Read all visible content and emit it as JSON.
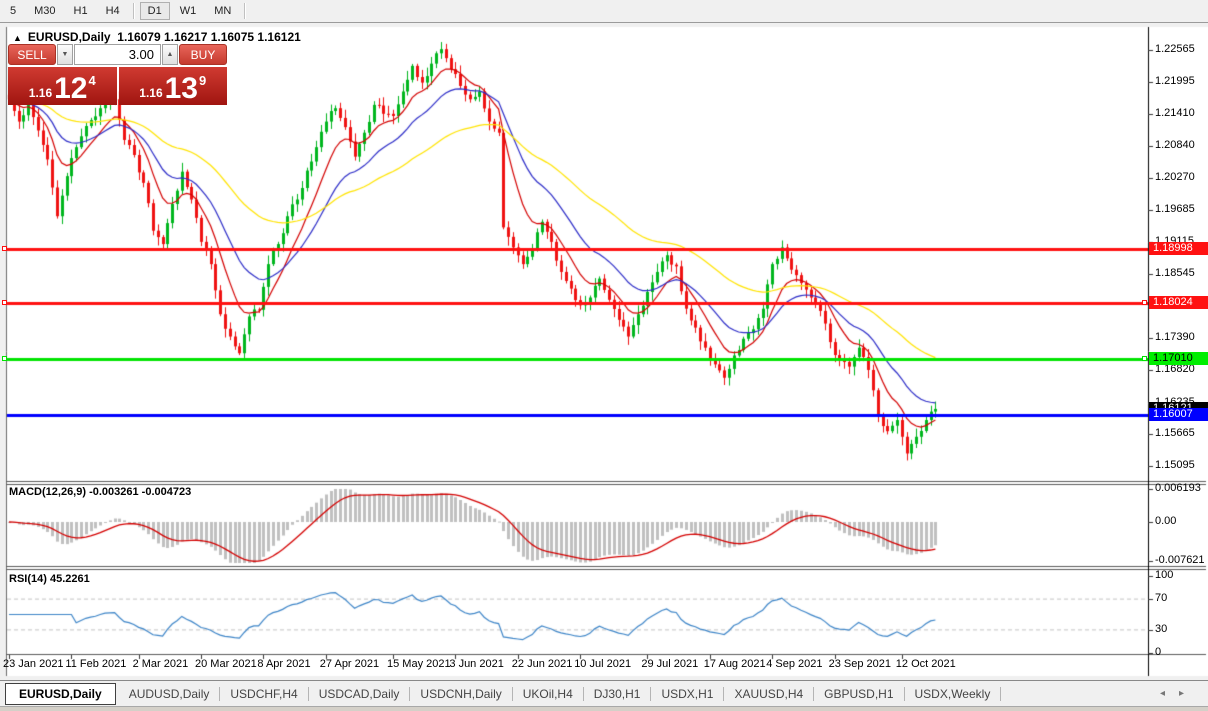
{
  "toolbar": {
    "timeframes": [
      "5",
      "M30",
      "H1",
      "H4",
      "D1",
      "W1",
      "MN"
    ],
    "active": "D1",
    "separators_after": [
      "H4",
      "MN"
    ]
  },
  "chart": {
    "title": {
      "collapse_icon": "▲",
      "symbol": "EURUSD,Daily",
      "ohlc": "1.16079 1.16217 1.16075 1.16121"
    },
    "trade_panel": {
      "sell_label": "SELL",
      "buy_label": "BUY",
      "volume": "3.00",
      "spin_down_icon": "▼",
      "spin_up_icon": "▲",
      "sell_price": {
        "prefix": "1.16",
        "big": "12",
        "pip": "4"
      },
      "buy_price": {
        "prefix": "1.16",
        "big": "13",
        "pip": "9"
      }
    }
  },
  "chart_data": {
    "type": "candlestick",
    "symbol": "EURUSD",
    "timeframe": "Daily",
    "last_ohlc": {
      "open": 1.16079,
      "high": 1.16217,
      "low": 1.16075,
      "close": 1.16121
    },
    "bars_total": 194,
    "up_color": "#00b61e",
    "down_color": "#ef1212",
    "price_axis_ticks": [
      1.22565,
      1.21995,
      1.2141,
      1.2084,
      1.2027,
      1.19685,
      1.19115,
      1.18545,
      1.1796,
      1.1739,
      1.1682,
      1.16235,
      1.15665,
      1.15095
    ],
    "x_labels": [
      {
        "text": "23 Jan 2021",
        "bar": 0
      },
      {
        "text": "11 Feb 2021",
        "bar": 13
      },
      {
        "text": "2 Mar 2021",
        "bar": 27
      },
      {
        "text": "20 Mar 2021",
        "bar": 40
      },
      {
        "text": "8 Apr 2021",
        "bar": 53
      },
      {
        "text": "27 Apr 2021",
        "bar": 66
      },
      {
        "text": "15 May 2021",
        "bar": 80
      },
      {
        "text": "3 Jun 2021",
        "bar": 93
      },
      {
        "text": "22 Jun 2021",
        "bar": 106
      },
      {
        "text": "10 Jul 2021",
        "bar": 119
      },
      {
        "text": "29 Jul 2021",
        "bar": 133
      },
      {
        "text": "17 Aug 2021",
        "bar": 146
      },
      {
        "text": "4 Sep 2021",
        "bar": 159
      },
      {
        "text": "23 Sep 2021",
        "bar": 172
      },
      {
        "text": "12 Oct 2021",
        "bar": 186
      }
    ],
    "close_keypoints": [
      [
        0,
        1.2168
      ],
      [
        2,
        1.2128
      ],
      [
        4,
        1.216
      ],
      [
        6,
        1.2112
      ],
      [
        8,
        1.206
      ],
      [
        10,
        1.1958
      ],
      [
        12,
        1.203
      ],
      [
        14,
        1.2082
      ],
      [
        16,
        1.212
      ],
      [
        19,
        1.2152
      ],
      [
        22,
        1.2168
      ],
      [
        24,
        1.2095
      ],
      [
        26,
        1.2068
      ],
      [
        28,
        1.2018
      ],
      [
        30,
        1.1932
      ],
      [
        32,
        1.1908
      ],
      [
        34,
        1.198
      ],
      [
        36,
        1.2038
      ],
      [
        38,
        1.1988
      ],
      [
        40,
        1.1912
      ],
      [
        42,
        1.1872
      ],
      [
        44,
        1.1782
      ],
      [
        46,
        1.1742
      ],
      [
        48,
        1.1712
      ],
      [
        50,
        1.1778
      ],
      [
        52,
        1.179
      ],
      [
        54,
        1.1872
      ],
      [
        56,
        1.1908
      ],
      [
        58,
        1.1958
      ],
      [
        60,
        1.1988
      ],
      [
        62,
        1.204
      ],
      [
        64,
        1.2082
      ],
      [
        66,
        1.2128
      ],
      [
        68,
        1.2152
      ],
      [
        70,
        1.2118
      ],
      [
        72,
        1.2065
      ],
      [
        74,
        1.2108
      ],
      [
        76,
        1.2158
      ],
      [
        78,
        1.2142
      ],
      [
        80,
        1.2138
      ],
      [
        82,
        1.2182
      ],
      [
        84,
        1.2228
      ],
      [
        86,
        1.2198
      ],
      [
        88,
        1.2232
      ],
      [
        90,
        1.2258
      ],
      [
        92,
        1.2222
      ],
      [
        94,
        1.2192
      ],
      [
        96,
        1.2168
      ],
      [
        98,
        1.2182
      ],
      [
        100,
        1.2128
      ],
      [
        102,
        1.2108
      ],
      [
        103,
        1.1938
      ],
      [
        105,
        1.1902
      ],
      [
        107,
        1.1872
      ],
      [
        109,
        1.1898
      ],
      [
        111,
        1.1948
      ],
      [
        113,
        1.1912
      ],
      [
        115,
        1.1858
      ],
      [
        117,
        1.1828
      ],
      [
        119,
        1.1798
      ],
      [
        121,
        1.1812
      ],
      [
        123,
        1.1846
      ],
      [
        125,
        1.1808
      ],
      [
        127,
        1.1772
      ],
      [
        129,
        1.1742
      ],
      [
        131,
        1.1782
      ],
      [
        133,
        1.1822
      ],
      [
        135,
        1.1858
      ],
      [
        137,
        1.1888
      ],
      [
        139,
        1.1868
      ],
      [
        141,
        1.1792
      ],
      [
        143,
        1.1758
      ],
      [
        145,
        1.1722
      ],
      [
        147,
        1.1692
      ],
      [
        149,
        1.1668
      ],
      [
        151,
        1.1708
      ],
      [
        153,
        1.1738
      ],
      [
        155,
        1.1755
      ],
      [
        157,
        1.1792
      ],
      [
        159,
        1.1872
      ],
      [
        161,
        1.1902
      ],
      [
        163,
        1.1862
      ],
      [
        165,
        1.1838
      ],
      [
        167,
        1.1812
      ],
      [
        169,
        1.1788
      ],
      [
        171,
        1.1732
      ],
      [
        173,
        1.1698
      ],
      [
        175,
        1.1688
      ],
      [
        177,
        1.1722
      ],
      [
        179,
        1.1682
      ],
      [
        181,
        1.1602
      ],
      [
        183,
        1.1572
      ],
      [
        185,
        1.1592
      ],
      [
        187,
        1.1532
      ],
      [
        189,
        1.1562
      ],
      [
        191,
        1.1592
      ],
      [
        193,
        1.1612
      ]
    ],
    "moving_averages": [
      {
        "name": "ma-fast",
        "period": 9,
        "color": "#d40000"
      },
      {
        "name": "ma-mid",
        "period": 20,
        "color": "#2c2cc8"
      },
      {
        "name": "ma-slow",
        "period": 52,
        "color": "#ffe400"
      }
    ],
    "horizontal_lines": [
      {
        "label": "1.18998",
        "price": 1.18998,
        "color": "#ff1111",
        "label_bg": "#ff1111",
        "label_fg": "#ffffff",
        "width": 3,
        "handles": [
          "left"
        ]
      },
      {
        "label": "1.18024",
        "price": 1.18024,
        "color": "#ff1111",
        "label_bg": "#ff1111",
        "label_fg": "#ffffff",
        "width": 3,
        "handles": [
          "left",
          "right"
        ]
      },
      {
        "label": "1.17010",
        "price": 1.1701,
        "color": "#00e400",
        "label_bg": "#00ee00",
        "label_fg": "#000000",
        "width": 3,
        "handles": [
          "left",
          "right"
        ]
      },
      {
        "label": "1.16007",
        "price": 1.16007,
        "color": "#0000ff",
        "label_bg": "#0000ff",
        "label_fg": "#ffffff",
        "width": 3,
        "handles": []
      }
    ],
    "current_price": {
      "label": "1.16121",
      "price": 1.16121,
      "bg": "#000000",
      "fg": "#ffffff"
    },
    "macd": {
      "label": "MACD(12,26,9) -0.003261 -0.004723",
      "params": [
        12,
        26,
        9
      ],
      "value": -0.003261,
      "signal_value": -0.004723,
      "axis_labels": [
        "0.006193",
        "0.00",
        "-0.007621"
      ],
      "vmax": 0.006193,
      "vmin": -0.007621,
      "hist_color": "#c0c0c0",
      "signal_color": "#d40000"
    },
    "rsi": {
      "label": "RSI(14) 45.2261",
      "period": 14,
      "value": 45.2261,
      "axis_labels": [
        "100",
        "70",
        "30",
        "0"
      ],
      "levels": [
        70,
        30
      ],
      "color": "#3d85c8"
    }
  },
  "bottom_tabs": {
    "tabs": [
      {
        "label": "EURUSD,Daily",
        "active": true
      },
      {
        "label": "AUDUSD,Daily",
        "active": false
      },
      {
        "label": "USDCHF,H4",
        "active": false
      },
      {
        "label": "USDCAD,Daily",
        "active": false
      },
      {
        "label": "USDCNH,Daily",
        "active": false
      },
      {
        "label": "UKOil,H4",
        "active": false
      },
      {
        "label": "DJ30,H1",
        "active": false
      },
      {
        "label": "USDX,H1",
        "active": false
      },
      {
        "label": "XAUUSD,H4",
        "active": false
      },
      {
        "label": "GBPUSD,H1",
        "active": false
      },
      {
        "label": "USDX,Weekly",
        "active": false
      }
    ],
    "left_arrow": "◂",
    "right_arrow": "▸"
  }
}
